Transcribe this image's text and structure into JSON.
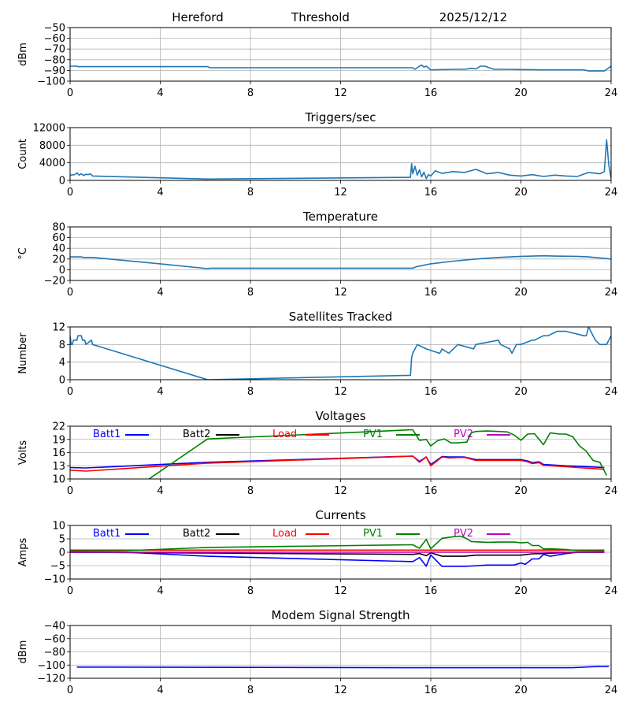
{
  "header": {
    "site": "Hereford",
    "mode": "Threshold",
    "date": "2025/12/12"
  },
  "chart_data": [
    {
      "type": "line",
      "title": "",
      "ylabel": "dBm",
      "xlim": [
        0,
        24
      ],
      "ylim": [
        -100,
        -50
      ],
      "xticks": [
        0,
        4,
        8,
        12,
        16,
        20,
        24
      ],
      "yticks": [
        -50,
        -60,
        -70,
        -80,
        -90,
        -100
      ],
      "grid": true,
      "series": [
        {
          "name": "threshold",
          "color": "#1f77b4",
          "x": [
            0,
            0.3,
            0.35,
            0.7,
            0.9,
            1.0,
            6.1,
            6.2,
            15.2,
            15.3,
            15.5,
            15.6,
            15.7,
            15.8,
            16.0,
            17.0,
            17.5,
            17.8,
            18.0,
            18.2,
            18.4,
            18.6,
            18.8,
            19.5,
            20.0,
            21.0,
            22.0,
            22.8,
            23.0,
            23.7,
            24.0
          ],
          "y": [
            -86,
            -86,
            -86.5,
            -86.5,
            -86.5,
            -86.5,
            -86.5,
            -87.5,
            -87.5,
            -89,
            -86,
            -85,
            -87,
            -86,
            -89.5,
            -89,
            -89,
            -88,
            -88.5,
            -86,
            -86,
            -87.5,
            -89,
            -89,
            -89.2,
            -89.5,
            -89.5,
            -89.5,
            -90.5,
            -90.5,
            -86
          ]
        }
      ]
    },
    {
      "type": "line",
      "title": "Triggers/sec",
      "ylabel": "Count",
      "xlim": [
        0,
        24
      ],
      "ylim": [
        0,
        12000
      ],
      "xticks": [
        0,
        4,
        8,
        12,
        16,
        20,
        24
      ],
      "yticks": [
        0,
        4000,
        8000,
        12000
      ],
      "grid": true,
      "series": [
        {
          "name": "triggers",
          "color": "#1f77b4",
          "x": [
            0,
            0.2,
            0.3,
            0.4,
            0.5,
            0.6,
            0.7,
            0.8,
            0.9,
            1.0,
            6.1,
            15.1,
            15.15,
            15.2,
            15.3,
            15.4,
            15.5,
            15.6,
            15.7,
            15.8,
            15.9,
            16.0,
            16.2,
            16.5,
            17.0,
            17.5,
            18.0,
            18.5,
            19.0,
            19.5,
            20.0,
            20.5,
            21.0,
            21.5,
            22.0,
            22.5,
            23.0,
            23.5,
            23.7,
            23.8,
            23.9,
            24.0
          ],
          "y": [
            1200,
            1300,
            1700,
            1200,
            1500,
            1100,
            1400,
            1300,
            1500,
            1000,
            300,
            700,
            3800,
            1500,
            3200,
            1200,
            2400,
            800,
            1900,
            400,
            1300,
            1000,
            2200,
            1600,
            2000,
            1800,
            2500,
            1500,
            1800,
            1200,
            1000,
            1300,
            900,
            1200,
            1000,
            900,
            1800,
            1500,
            2000,
            9200,
            3500,
            500
          ]
        }
      ]
    },
    {
      "type": "line",
      "title": "Temperature",
      "ylabel": "°C",
      "xlim": [
        0,
        24
      ],
      "ylim": [
        -20,
        80
      ],
      "xticks": [
        0,
        4,
        8,
        12,
        16,
        20,
        24
      ],
      "yticks": [
        -20,
        0,
        20,
        40,
        60,
        80
      ],
      "grid": true,
      "series": [
        {
          "name": "temperature",
          "color": "#1f77b4",
          "x": [
            0,
            0.5,
            0.6,
            1.0,
            4.0,
            6.1,
            6.2,
            15.2,
            15.4,
            16.0,
            17.0,
            18.0,
            19.0,
            20.0,
            21.0,
            21.5,
            22.5,
            23.0,
            24.0
          ],
          "y": [
            24,
            24,
            23,
            23,
            11,
            2,
            3,
            3,
            6,
            11,
            16,
            20,
            23,
            25,
            26,
            25.5,
            25,
            24,
            20
          ]
        }
      ]
    },
    {
      "type": "line",
      "title": "Satellites Tracked",
      "ylabel": "Number",
      "xlim": [
        0,
        24
      ],
      "ylim": [
        0,
        12
      ],
      "xticks": [
        0,
        4,
        8,
        12,
        16,
        20,
        24
      ],
      "yticks": [
        0,
        4,
        8,
        12
      ],
      "grid": true,
      "series": [
        {
          "name": "satellites",
          "color": "#1f77b4",
          "x": [
            0,
            0.05,
            0.1,
            0.15,
            0.3,
            0.35,
            0.5,
            0.55,
            0.65,
            0.7,
            0.95,
            1.0,
            6.1,
            15.1,
            15.15,
            15.2,
            15.3,
            15.4,
            15.8,
            16.4,
            16.5,
            16.8,
            17.0,
            17.2,
            17.9,
            18.0,
            19.0,
            19.1,
            19.5,
            19.6,
            19.8,
            20.0,
            20.5,
            20.6,
            21.0,
            21.2,
            21.6,
            22.0,
            22.8,
            22.9,
            23.0,
            23.1,
            23.3,
            23.5,
            23.8,
            23.9,
            24.0
          ],
          "y": [
            10,
            8,
            8,
            9,
            9,
            10,
            10,
            9,
            9,
            8,
            9,
            8,
            0,
            1,
            5,
            6,
            7,
            8,
            7,
            6,
            7,
            6,
            7,
            8,
            7,
            8,
            9,
            8,
            7,
            6,
            8,
            8,
            9,
            9,
            10,
            10,
            11,
            11,
            10,
            10,
            12,
            11,
            9,
            8,
            8,
            9,
            10
          ]
        }
      ]
    },
    {
      "type": "line",
      "title": "Voltages",
      "ylabel": "Volts",
      "xlim": [
        0,
        24
      ],
      "ylim": [
        10,
        22
      ],
      "xticks": [
        0,
        4,
        8,
        12,
        16,
        20,
        24
      ],
      "yticks": [
        10,
        13,
        16,
        19,
        22
      ],
      "grid": true,
      "legend": "top, inline",
      "series": [
        {
          "name": "Batt1",
          "color": "#0000ff",
          "x": [
            0,
            0.7,
            6.1,
            15.2,
            15.5,
            15.8,
            16.0,
            16.5,
            16.8,
            17.5,
            18.0,
            20.0,
            20.3,
            20.5,
            20.8,
            21.0,
            22.0,
            22.5,
            23.7
          ],
          "y": [
            12.6,
            12.5,
            13.8,
            15.2,
            14.0,
            15.0,
            13.3,
            15.1,
            15.0,
            15.0,
            14.4,
            14.4,
            14.1,
            13.7,
            13.9,
            13.3,
            13.0,
            12.9,
            12.6
          ]
        },
        {
          "name": "Batt2",
          "color": "#000000",
          "x": [],
          "y": []
        },
        {
          "name": "Load",
          "color": "#ff0000",
          "x": [
            0,
            0.7,
            6.1,
            15.2,
            15.5,
            15.8,
            16.0,
            16.5,
            16.8,
            17.5,
            18.0,
            20.0,
            20.3,
            20.5,
            20.8,
            21.0,
            22.0,
            22.5,
            23.7
          ],
          "y": [
            12.0,
            11.8,
            13.6,
            15.2,
            13.8,
            15.0,
            13.0,
            15.0,
            14.8,
            14.9,
            14.2,
            14.2,
            13.9,
            13.5,
            13.7,
            13.1,
            12.8,
            12.6,
            12.2
          ]
        },
        {
          "name": "PV1",
          "color": "#008000",
          "x": [
            3.5,
            6.1,
            15.2,
            15.5,
            15.8,
            16.0,
            16.3,
            16.6,
            16.9,
            17.2,
            17.6,
            17.8,
            18.0,
            18.5,
            19.0,
            19.4,
            19.7,
            20.0,
            20.3,
            20.6,
            21.0,
            21.3,
            21.7,
            22.0,
            22.3,
            22.6,
            22.9,
            23.2,
            23.5,
            23.8
          ],
          "y": [
            10,
            19.1,
            21.2,
            18.8,
            19.0,
            17.5,
            18.7,
            19.1,
            18.2,
            18.2,
            18.4,
            20.5,
            20.8,
            20.9,
            20.8,
            20.7,
            20.0,
            18.8,
            20.2,
            20.3,
            17.8,
            20.5,
            20.2,
            20.2,
            19.6,
            17.5,
            16.3,
            14.2,
            13.8,
            10.8
          ]
        },
        {
          "name": "PV2",
          "color": "#bf00bf",
          "x": [],
          "y": []
        }
      ]
    },
    {
      "type": "line",
      "title": "Currents",
      "ylabel": "Amps",
      "xlim": [
        0,
        24
      ],
      "ylim": [
        -10,
        10
      ],
      "xticks": [
        0,
        4,
        8,
        12,
        16,
        20,
        24
      ],
      "yticks": [
        -10,
        -5,
        0,
        5,
        10
      ],
      "grid": true,
      "legend": "top, inline",
      "series": [
        {
          "name": "Batt1",
          "color": "#0000ff",
          "x": [
            0,
            2.5,
            6.1,
            15.2,
            15.5,
            15.8,
            16.0,
            16.5,
            17.0,
            17.5,
            18.5,
            19.7,
            20.0,
            20.2,
            20.5,
            20.8,
            21.0,
            21.3,
            22.0,
            22.5,
            23.7
          ],
          "y": [
            0,
            0,
            -1.5,
            -3.5,
            -2.0,
            -5.2,
            -1.0,
            -5.3,
            -5.3,
            -5.3,
            -4.8,
            -4.8,
            -4.0,
            -4.5,
            -2.5,
            -2.5,
            -0.8,
            -1.5,
            -0.5,
            0,
            0
          ]
        },
        {
          "name": "Batt2",
          "color": "#000000",
          "x": [
            0,
            6.1,
            15.2,
            15.5,
            15.8,
            16.0,
            16.5,
            17.5,
            18.0,
            20.0,
            20.5,
            21.0,
            22.0,
            23.7
          ],
          "y": [
            0,
            -0.3,
            -0.8,
            -0.5,
            -1.3,
            -0.2,
            -1.5,
            -1.5,
            -1.1,
            -1.1,
            -0.6,
            -0.5,
            -0.1,
            0
          ]
        },
        {
          "name": "Load",
          "color": "#ff0000",
          "x": [
            0,
            23.7
          ],
          "y": [
            0.8,
            0.8
          ]
        },
        {
          "name": "PV1",
          "color": "#008000",
          "x": [
            0,
            2.5,
            6.1,
            15.2,
            15.5,
            15.8,
            16.0,
            16.5,
            17.0,
            17.3,
            17.5,
            17.8,
            18.5,
            19.0,
            19.7,
            20.0,
            20.3,
            20.5,
            20.8,
            21.0,
            21.3,
            22.0,
            22.5,
            23.7
          ],
          "y": [
            0.5,
            0.6,
            1.8,
            2.8,
            1.5,
            4.8,
            1.3,
            5.2,
            5.8,
            6.0,
            5.5,
            4.0,
            3.7,
            3.8,
            3.8,
            3.5,
            3.7,
            2.5,
            2.5,
            1.2,
            1.3,
            1.0,
            0.6,
            0.5
          ]
        },
        {
          "name": "PV2",
          "color": "#bf00bf",
          "x": [
            0,
            23.7
          ],
          "y": [
            0,
            0
          ]
        }
      ]
    },
    {
      "type": "line",
      "title": "Modem Signal Strength",
      "ylabel": "dBm",
      "xlim": [
        0,
        24
      ],
      "ylim": [
        -120,
        -40
      ],
      "xticks": [
        0,
        4,
        8,
        12,
        16,
        20,
        24
      ],
      "yticks": [
        -40,
        -60,
        -80,
        -100,
        -120
      ],
      "grid": true,
      "series": [
        {
          "name": "modem",
          "color": "#0000ff",
          "x": [
            0.3,
            8,
            16,
            22.3,
            23.2,
            23.9
          ],
          "y": [
            -103,
            -103.5,
            -104,
            -104,
            -102.5,
            -102
          ]
        }
      ]
    }
  ]
}
